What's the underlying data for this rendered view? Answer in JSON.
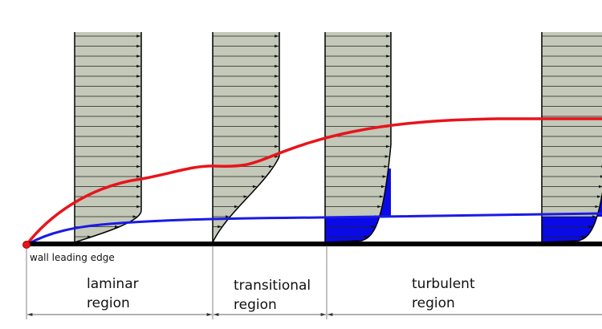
{
  "labels": {
    "leading_edge": "wall leading edge",
    "regions": [
      {
        "lines": [
          "laminar",
          "region"
        ]
      },
      {
        "lines": [
          "transitional",
          "region"
        ]
      },
      {
        "lines": [
          "turbulent",
          "region"
        ]
      }
    ]
  }
}
